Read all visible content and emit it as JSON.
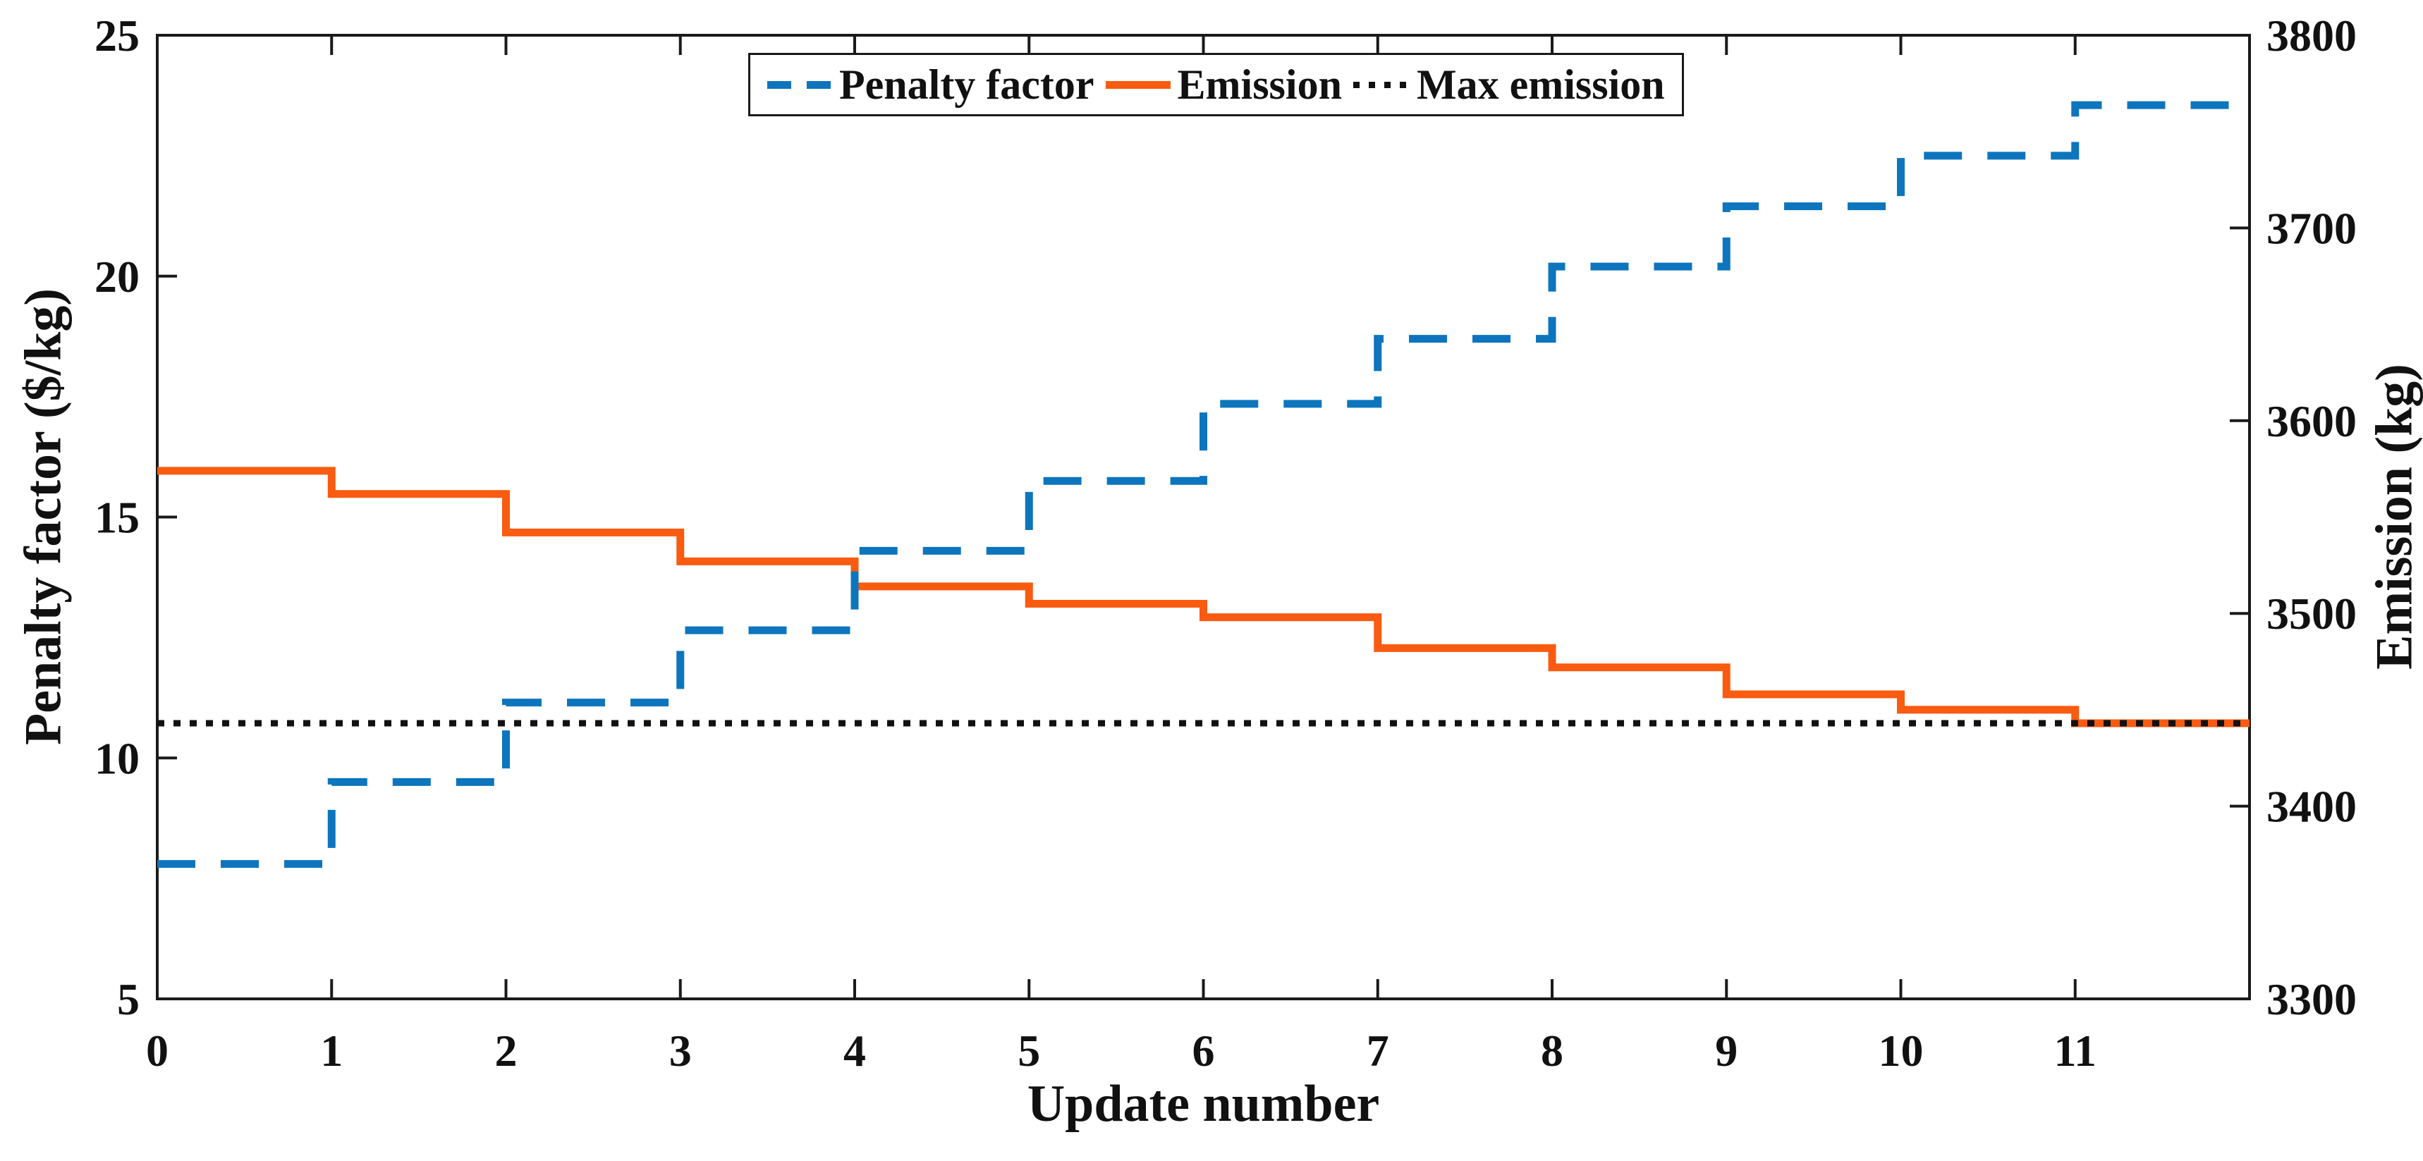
{
  "figure": {
    "kind": "dual-axis step chart",
    "background": "#ffffff"
  },
  "chart_data": {
    "type": "line",
    "subtype": "step-post",
    "xlabel": "Update number",
    "ylabel_left": "Penalty factor ($/kg)",
    "ylabel_right": "Emission (kg)",
    "xlim": [
      0,
      12
    ],
    "ylim_left": [
      5,
      25
    ],
    "ylim_right": [
      3300,
      3800
    ],
    "x_ticks": [
      0,
      1,
      2,
      3,
      4,
      5,
      6,
      7,
      8,
      9,
      10,
      11
    ],
    "y_ticks_left": [
      5,
      10,
      15,
      20,
      25
    ],
    "y_ticks_right": [
      3300,
      3400,
      3500,
      3600,
      3700,
      3800
    ],
    "grid": false,
    "legend_position": "top-center",
    "series": [
      {
        "name": "Penalty factor",
        "axis": "left",
        "style": "dashed",
        "color": "#0d75bd",
        "step_start_x": 0,
        "step_width": 1,
        "step_values": [
          7.8,
          9.5,
          11.15,
          12.65,
          14.3,
          15.75,
          17.35,
          18.7,
          20.2,
          21.45,
          22.5,
          23.55
        ]
      },
      {
        "name": "Emission",
        "axis": "right",
        "style": "solid",
        "color": "#f95b10",
        "step_start_x": 0,
        "step_width": 1,
        "step_values": [
          3574,
          3562,
          3542,
          3527,
          3514,
          3505,
          3498,
          3482,
          3472,
          3458,
          3450,
          3443
        ]
      },
      {
        "name": "Max emission",
        "axis": "right",
        "style": "dotted",
        "color": "#111111",
        "constant_value": 3443
      }
    ]
  },
  "colors": {
    "axis": "#1a1a1a",
    "text": "#111111"
  }
}
